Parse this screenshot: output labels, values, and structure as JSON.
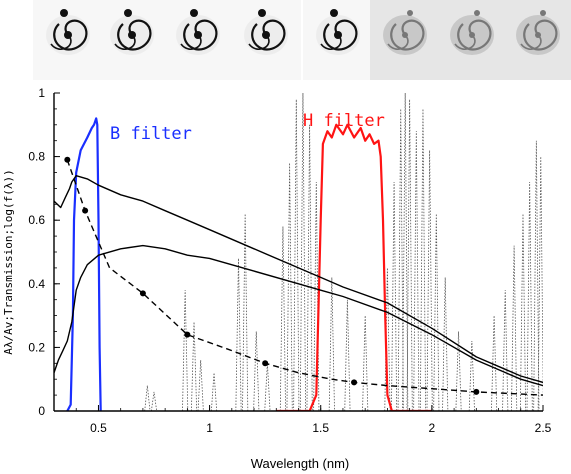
{
  "thumbnails": {
    "count": 8,
    "icon": "spiral-galaxy-icon"
  },
  "chart_data": {
    "type": "line",
    "xlabel": "Wavelength (nm)",
    "ylabel": "Aλ/Av;Transmission;log(f(λ))",
    "xlim": [
      0.3,
      2.5
    ],
    "ylim": [
      0,
      1.0
    ],
    "xticks": [
      "0.5",
      "1",
      "1.5",
      "2",
      "2.5"
    ],
    "yticks": [
      "0",
      "0.2",
      "0.4",
      "0.6",
      "0.8",
      "1"
    ],
    "annotations": {
      "b_filter": "B filter",
      "h_filter": "H filter"
    },
    "colors": {
      "b_filter": "#1a2fff",
      "h_filter": "#ff1414",
      "spectra": "#000000",
      "extinction": "#000000",
      "lines": "#555555"
    },
    "series": [
      {
        "role": "B filter transmission",
        "color": "#1a2fff",
        "x": [
          0.36,
          0.375,
          0.385,
          0.39,
          0.4,
          0.42,
          0.45,
          0.47,
          0.48,
          0.49,
          0.495,
          0.5,
          0.505,
          0.51
        ],
        "y": [
          0,
          0.02,
          0.3,
          0.6,
          0.75,
          0.82,
          0.86,
          0.89,
          0.9,
          0.92,
          0.9,
          0.6,
          0.2,
          0
        ]
      },
      {
        "role": "H filter transmission",
        "color": "#ff1414",
        "x": [
          1.3,
          1.45,
          1.48,
          1.5,
          1.51,
          1.53,
          1.55,
          1.57,
          1.6,
          1.62,
          1.65,
          1.68,
          1.7,
          1.72,
          1.74,
          1.76,
          1.77,
          1.78,
          1.79,
          1.8,
          1.82,
          2.0
        ],
        "y": [
          0,
          0,
          0.05,
          0.6,
          0.84,
          0.88,
          0.86,
          0.9,
          0.87,
          0.9,
          0.86,
          0.89,
          0.85,
          0.87,
          0.84,
          0.85,
          0.8,
          0.6,
          0.3,
          0.05,
          0,
          0
        ]
      },
      {
        "role": "upper spectrum",
        "color": "#000000",
        "x": [
          0.3,
          0.33,
          0.35,
          0.37,
          0.38,
          0.4,
          0.45,
          0.5,
          0.6,
          0.7,
          0.8,
          0.9,
          1.0,
          1.2,
          1.4,
          1.5,
          1.6,
          1.8,
          2.0,
          2.2,
          2.4,
          2.5
        ],
        "y": [
          0.66,
          0.64,
          0.67,
          0.7,
          0.72,
          0.74,
          0.73,
          0.71,
          0.68,
          0.66,
          0.63,
          0.6,
          0.57,
          0.51,
          0.45,
          0.42,
          0.39,
          0.34,
          0.26,
          0.17,
          0.11,
          0.09
        ]
      },
      {
        "role": "lower spectrum",
        "color": "#000000",
        "x": [
          0.3,
          0.32,
          0.34,
          0.36,
          0.38,
          0.4,
          0.42,
          0.45,
          0.5,
          0.6,
          0.7,
          0.8,
          0.9,
          1.0,
          1.2,
          1.4,
          1.5,
          1.6,
          1.8,
          2.0,
          2.2,
          2.4,
          2.5
        ],
        "y": [
          0.12,
          0.16,
          0.19,
          0.22,
          0.28,
          0.38,
          0.42,
          0.46,
          0.49,
          0.51,
          0.52,
          0.51,
          0.49,
          0.48,
          0.44,
          0.4,
          0.38,
          0.36,
          0.31,
          0.24,
          0.16,
          0.1,
          0.08
        ]
      },
      {
        "role": "extinction curve",
        "color": "#000000",
        "dashed": true,
        "x": [
          0.36,
          0.44,
          0.55,
          0.7,
          0.9,
          1.1,
          1.25,
          1.4,
          1.55,
          1.65,
          1.8,
          2.0,
          2.2,
          2.35,
          2.5
        ],
        "y": [
          0.79,
          0.63,
          0.45,
          0.37,
          0.24,
          0.19,
          0.15,
          0.12,
          0.1,
          0.09,
          0.08,
          0.07,
          0.06,
          0.055,
          0.05
        ]
      },
      {
        "role": "extinction markers",
        "color": "#000000",
        "x": [
          0.36,
          0.44,
          0.7,
          0.9,
          1.25,
          1.65,
          2.2
        ],
        "y": [
          0.79,
          0.63,
          0.37,
          0.24,
          0.15,
          0.09,
          0.06
        ]
      }
    ],
    "emission_lines": [
      {
        "x": 0.72,
        "h": 0.08
      },
      {
        "x": 0.75,
        "h": 0.06
      },
      {
        "x": 0.89,
        "h": 0.38
      },
      {
        "x": 0.93,
        "h": 0.28
      },
      {
        "x": 0.96,
        "h": 0.16
      },
      {
        "x": 1.02,
        "h": 0.12
      },
      {
        "x": 1.13,
        "h": 0.48
      },
      {
        "x": 1.16,
        "h": 0.62
      },
      {
        "x": 1.21,
        "h": 0.25
      },
      {
        "x": 1.26,
        "h": 0.15
      },
      {
        "x": 1.33,
        "h": 0.58
      },
      {
        "x": 1.36,
        "h": 0.78
      },
      {
        "x": 1.39,
        "h": 0.98
      },
      {
        "x": 1.42,
        "h": 1.0
      },
      {
        "x": 1.45,
        "h": 0.9
      },
      {
        "x": 1.48,
        "h": 0.72
      },
      {
        "x": 1.55,
        "h": 0.42
      },
      {
        "x": 1.62,
        "h": 0.35
      },
      {
        "x": 1.7,
        "h": 0.3
      },
      {
        "x": 1.8,
        "h": 0.45
      },
      {
        "x": 1.83,
        "h": 0.72
      },
      {
        "x": 1.86,
        "h": 0.95
      },
      {
        "x": 1.88,
        "h": 1.0
      },
      {
        "x": 1.9,
        "h": 0.98
      },
      {
        "x": 1.93,
        "h": 0.88
      },
      {
        "x": 1.96,
        "h": 0.95
      },
      {
        "x": 1.99,
        "h": 0.82
      },
      {
        "x": 2.02,
        "h": 0.62
      },
      {
        "x": 2.06,
        "h": 0.42
      },
      {
        "x": 2.12,
        "h": 0.25
      },
      {
        "x": 2.18,
        "h": 0.22
      },
      {
        "x": 2.28,
        "h": 0.3
      },
      {
        "x": 2.33,
        "h": 0.38
      },
      {
        "x": 2.37,
        "h": 0.52
      },
      {
        "x": 2.41,
        "h": 0.62
      },
      {
        "x": 2.44,
        "h": 0.72
      },
      {
        "x": 2.47,
        "h": 0.85
      },
      {
        "x": 2.49,
        "h": 0.8
      }
    ]
  }
}
